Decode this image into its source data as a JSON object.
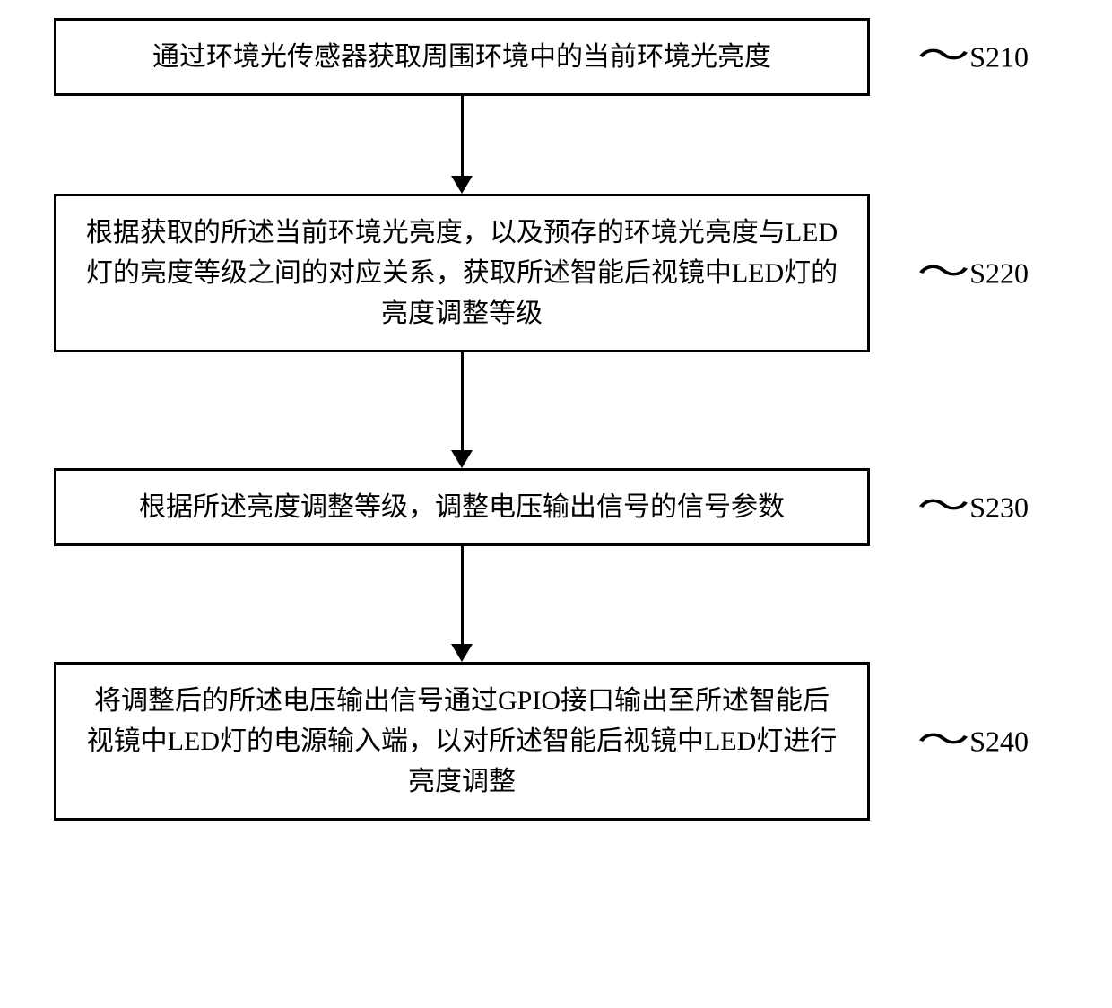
{
  "flowchart": {
    "type": "flowchart",
    "direction": "vertical",
    "box_border_color": "#000000",
    "box_border_width": 3,
    "box_background": "#ffffff",
    "text_color": "#000000",
    "font_size": 30,
    "arrow_color": "#000000",
    "arrow_width": 3,
    "steps": [
      {
        "text": "通过环境光传感器获取周围环境中的当前环境光亮度",
        "label": "S210",
        "arrow_height": 90
      },
      {
        "text": "根据获取的所述当前环境光亮度，以及预存的环境光亮度与LED灯的亮度等级之间的对应关系，获取所述智能后视镜中LED灯的亮度调整等级",
        "label": "S220",
        "arrow_height": 110
      },
      {
        "text": "根据所述亮度调整等级，调整电压输出信号的信号参数",
        "label": "S230",
        "arrow_height": 110
      },
      {
        "text": "将调整后的所述电压输出信号通过GPIO接口输出至所述智能后视镜中LED灯的电源输入端，以对所述智能后视镜中LED灯进行亮度调整",
        "label": "S240",
        "arrow_height": 0
      }
    ]
  }
}
